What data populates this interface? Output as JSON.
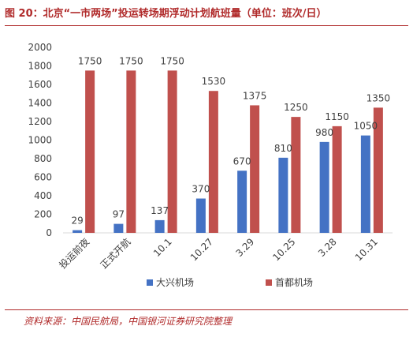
{
  "figure": {
    "title": "图 20：北京“一市两场”投运转场期浮动计划航班量（单位：班次/日）",
    "source": "资料来源：中国民航局，中国银河证券研究院整理"
  },
  "colors": {
    "accent": "#b02a2a",
    "series1": "#4472c4",
    "series2": "#c0504d",
    "axis": "#d9d9d9",
    "text": "#404040"
  },
  "chart_data": {
    "type": "bar",
    "categories": [
      "投运前夜",
      "正式开航",
      "10.1",
      "10.27",
      "3.29",
      "10.25",
      "3.28",
      "10.31"
    ],
    "series": [
      {
        "name": "大兴机场",
        "values": [
          29,
          97,
          137,
          370,
          670,
          810,
          980,
          1050
        ]
      },
      {
        "name": "首都机场",
        "values": [
          1750,
          1750,
          1750,
          1530,
          1375,
          1250,
          1150,
          1350
        ]
      }
    ],
    "ylim": [
      0,
      2000
    ],
    "yticks": [
      0,
      200,
      400,
      600,
      800,
      1000,
      1200,
      1400,
      1600,
      1800,
      2000
    ],
    "grid": false,
    "legend_position": "bottom",
    "data_labels": true
  }
}
